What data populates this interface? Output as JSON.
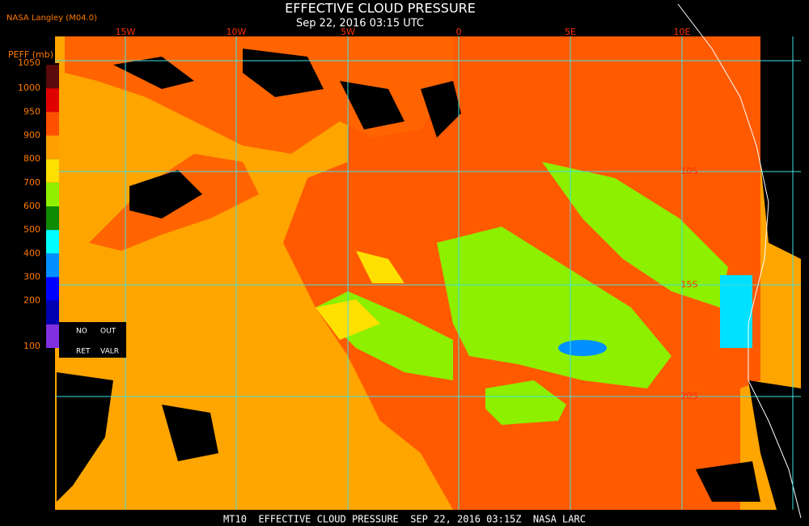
{
  "header": {
    "source": "NASA Langley (M04.0)",
    "title": "EFFECTIVE CLOUD PRESSURE",
    "subtitle": "Sep 22, 2016 03:15 UTC"
  },
  "longitude_labels": [
    "15W",
    "10W",
    "5W",
    "0",
    "5E",
    "10E"
  ],
  "latitude_labels": [
    "10S",
    "15S",
    "20S"
  ],
  "legend": {
    "title": "PEFF (mb)",
    "labels": [
      1050,
      1000,
      950,
      900,
      800,
      700,
      600,
      500,
      400,
      300,
      200,
      100
    ],
    "no_ret": [
      "NO",
      "RET"
    ],
    "out_valr": [
      "OUT",
      "VALR"
    ]
  },
  "footer": "MT10  EFFECTIVE CLOUD PRESSURE  SEP 22, 2016 03:15Z  NASA LARC"
}
